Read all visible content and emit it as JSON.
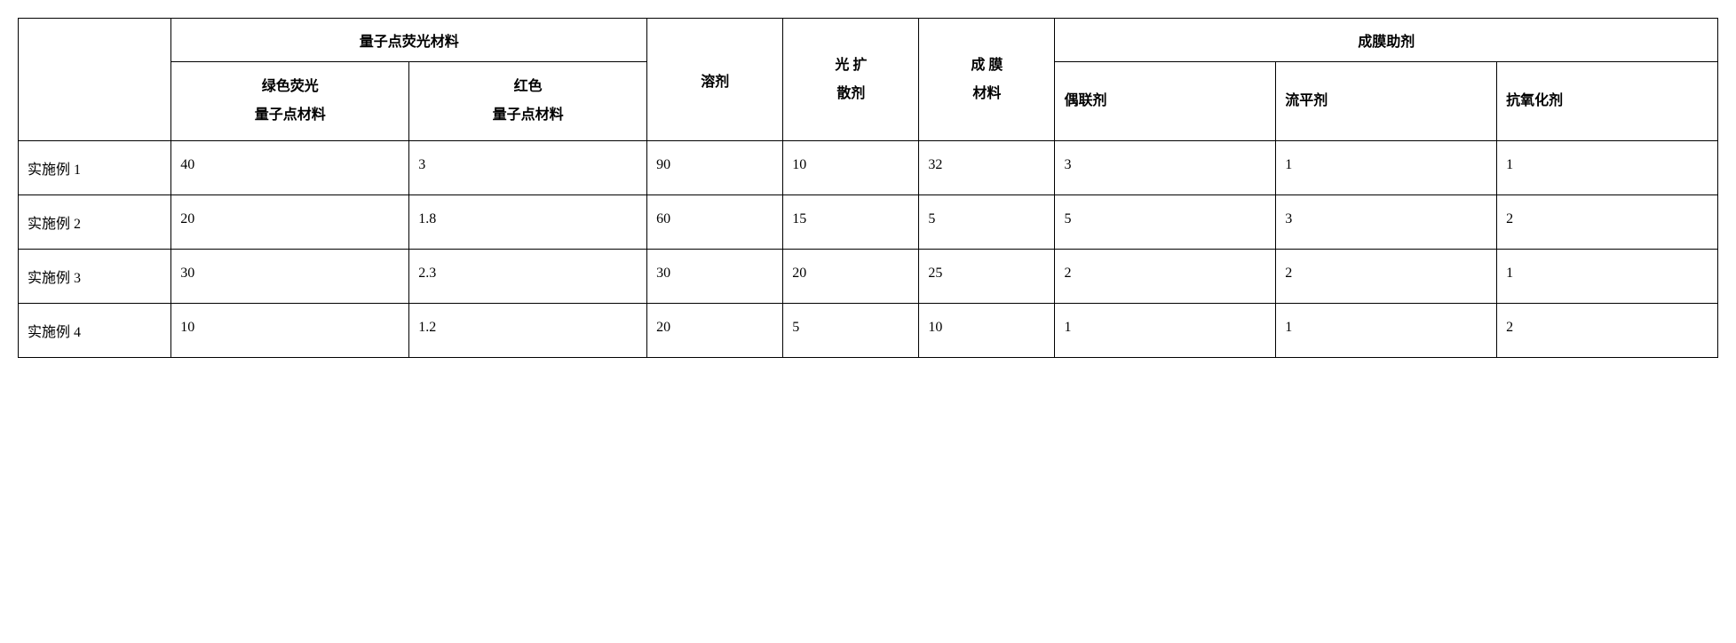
{
  "table": {
    "headers": {
      "quantum_dot": "量子点荧光材料",
      "green_qd": "绿色荧光",
      "green_qd2": "量子点材料",
      "red_qd": "红色",
      "red_qd2": "量子点材料",
      "solvent": "溶剂",
      "diffuser_l1": "光 扩",
      "diffuser_l2": "散剂",
      "film_material_l1": "成 膜",
      "film_material_l2": "材料",
      "film_aid": "成膜助剂",
      "coupling": "偶联剂",
      "leveling": "流平剂",
      "antioxidant": "抗氧化剂"
    },
    "row_labels": {
      "r1": "实施例 1",
      "r2": "实施例 2",
      "r3": "实施例 3",
      "r4": "实施例 4"
    },
    "rows": {
      "r1": {
        "green": "40",
        "red": "3",
        "solvent": "90",
        "diffuser": "10",
        "film": "32",
        "coupling": "3",
        "leveling": "1",
        "antioxidant": "1"
      },
      "r2": {
        "green": "20",
        "red": "1.8",
        "solvent": "60",
        "diffuser": "15",
        "film": "5",
        "coupling": "5",
        "leveling": "3",
        "antioxidant": "2"
      },
      "r3": {
        "green": "30",
        "red": "2.3",
        "solvent": "30",
        "diffuser": "20",
        "film": "25",
        "coupling": "2",
        "leveling": "2",
        "antioxidant": "1"
      },
      "r4": {
        "green": "10",
        "red": "1.2",
        "solvent": "20",
        "diffuser": "5",
        "film": "10",
        "coupling": "1",
        "leveling": "1",
        "antioxidant": "2"
      }
    }
  },
  "styling": {
    "font_family": "SimSun",
    "font_size_pt": 16,
    "border_color": "#000000",
    "background_color": "#ffffff",
    "text_color": "#000000"
  }
}
